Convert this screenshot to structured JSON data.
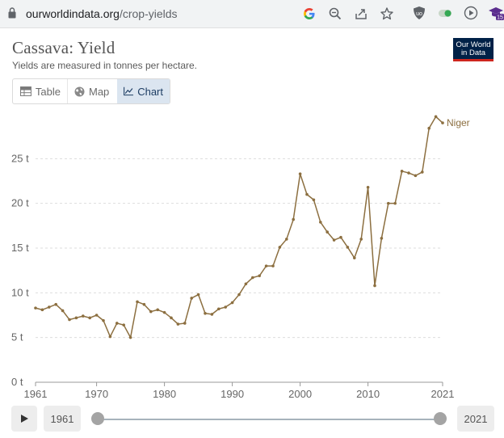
{
  "browser": {
    "url_host": "ourworldindata.org",
    "url_path": "/crop-yields",
    "extension_badge": "15"
  },
  "header": {
    "title": "Cassava: Yield",
    "subtitle": "Yields are measured in tonnes per hectare.",
    "logo_line1": "Our World",
    "logo_line2": "in Data"
  },
  "tabs": [
    {
      "label": "Table",
      "icon": "table-icon",
      "active": false
    },
    {
      "label": "Map",
      "icon": "globe-icon",
      "active": false
    },
    {
      "label": "Chart",
      "icon": "line-chart-icon",
      "active": true
    }
  ],
  "timeline": {
    "start_label": "1961",
    "end_label": "2021"
  },
  "colors": {
    "series": "#8c6f40",
    "grid": "#dddddd",
    "logo_bg": "#002147",
    "logo_accent": "#ce261e",
    "active_tab": "#dbe5f0"
  },
  "chart_data": {
    "type": "line",
    "title": "Cassava: Yield",
    "subtitle": "Yields are measured in tonnes per hectare.",
    "ylim": [
      0,
      30
    ],
    "y_ticks": [
      0,
      5,
      10,
      15,
      20,
      25
    ],
    "y_tick_labels": [
      "0 t",
      "5 t",
      "10 t",
      "15 t",
      "20 t",
      "25 t"
    ],
    "xlim": [
      1961,
      2021
    ],
    "x_ticks": [
      1961,
      1970,
      1980,
      1990,
      2000,
      2010,
      2021
    ],
    "x_tick_labels": [
      "1961",
      "1970",
      "1980",
      "1990",
      "2000",
      "2010",
      "2021"
    ],
    "grid": true,
    "series": [
      {
        "name": "Niger",
        "x": [
          1961,
          1962,
          1963,
          1964,
          1965,
          1966,
          1967,
          1968,
          1969,
          1970,
          1971,
          1972,
          1973,
          1974,
          1975,
          1976,
          1977,
          1978,
          1979,
          1980,
          1981,
          1982,
          1983,
          1984,
          1985,
          1986,
          1987,
          1988,
          1989,
          1990,
          1991,
          1992,
          1993,
          1994,
          1995,
          1996,
          1997,
          1998,
          1999,
          2000,
          2001,
          2002,
          2003,
          2004,
          2005,
          2006,
          2007,
          2008,
          2009,
          2010,
          2011,
          2012,
          2013,
          2014,
          2015,
          2016,
          2017,
          2018,
          2019,
          2020,
          2021
        ],
        "values": [
          8.3,
          8.1,
          8.4,
          8.7,
          8.0,
          7.0,
          7.2,
          7.4,
          7.2,
          7.5,
          6.9,
          5.1,
          6.6,
          6.4,
          5.0,
          9.0,
          8.7,
          7.9,
          8.1,
          7.8,
          7.2,
          6.5,
          6.6,
          9.4,
          9.8,
          7.7,
          7.6,
          8.2,
          8.4,
          8.9,
          9.8,
          11.0,
          11.7,
          11.9,
          13.0,
          13.0,
          15.1,
          16.0,
          18.2,
          23.3,
          21.0,
          20.4,
          17.9,
          16.8,
          15.9,
          16.2,
          15.1,
          13.9,
          16.0,
          21.8,
          10.8,
          16.1,
          20.0,
          20.0,
          23.6,
          23.4,
          23.1,
          23.5,
          28.4,
          29.7,
          29.0
        ]
      }
    ]
  }
}
